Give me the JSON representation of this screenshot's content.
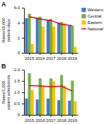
{
  "chart_data": [
    {
      "type": "bar",
      "title": "A",
      "y_label": "Rates/10,000\npatient-days",
      "categories": [
        "2015",
        "2016",
        "2017",
        "2018",
        "2019"
      ],
      "series": [
        {
          "name": "Western",
          "color": "#4472C4",
          "values": [
            4.6,
            4.7,
            4.4,
            4.0,
            3.6
          ]
        },
        {
          "name": "Central",
          "color": "#70AD47",
          "values": [
            5.2,
            4.8,
            4.5,
            4.1,
            3.6
          ]
        },
        {
          "name": "Eastern",
          "color": "#FFC000",
          "values": [
            1.2,
            3.5,
            3.5,
            3.9,
            0.8
          ]
        },
        {
          "name": "National",
          "type": "line",
          "color": "#CC0000",
          "values": [
            4.8,
            4.5,
            4.3,
            3.8,
            3.6
          ]
        }
      ],
      "ylim": [
        0,
        6.0
      ],
      "yticks": [
        0,
        2,
        4,
        {
          "value": 6,
          "label": "6.0"
        }
      ],
      "legend": "upper right"
    },
    {
      "type": "bar",
      "title": "B",
      "y_label": "Rates/1,000\npatient admissions",
      "categories": [
        "2015",
        "2016",
        "2017",
        "2018",
        "2019"
      ],
      "series": [
        {
          "color": "#4472C4",
          "values": [
            0.72,
            0.68,
            0.72,
            0.65,
            0.63
          ]
        },
        {
          "color": "#70AD47",
          "values": [
            1.85,
            1.62,
            1.62,
            1.77,
            1.52
          ]
        },
        {
          "color": "#FFC000",
          "values": [
            1.1,
            1.28,
            1.48,
            1.28,
            0.6
          ]
        },
        {
          "type": "line",
          "color": "#CC0000",
          "values": [
            1.3,
            1.28,
            1.25,
            1.27,
            1.05
          ]
        }
      ],
      "ylim": [
        0,
        2.0
      ],
      "yticks": [
        0,
        0.5,
        {
          "value": 1,
          "label": "1.0"
        },
        1.5,
        {
          "value": 2,
          "label": "2.0"
        }
      ]
    }
  ]
}
